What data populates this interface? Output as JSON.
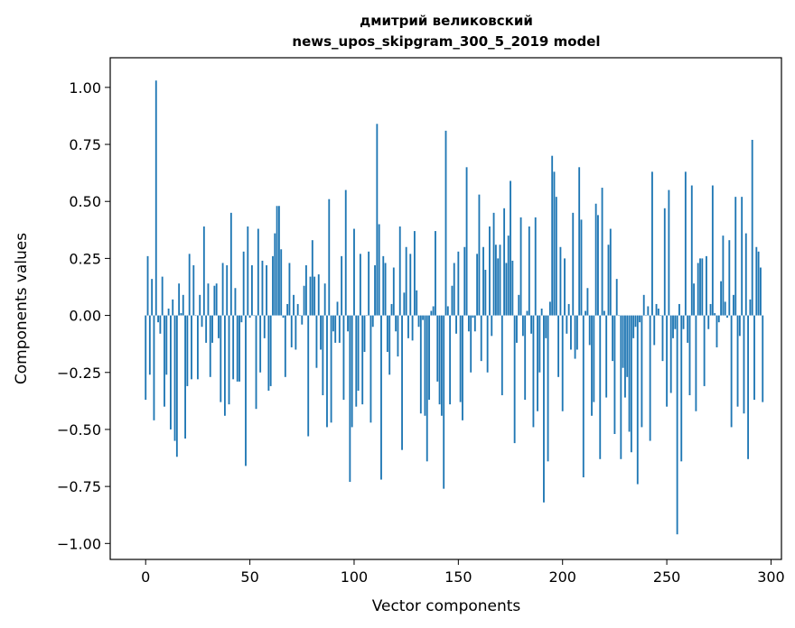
{
  "chart_data": {
    "type": "bar",
    "title": "дмитрий великовский",
    "subtitle": "news_upos_skipgram_300_5_2019 model",
    "xlabel": "Vector components",
    "ylabel": "Components values",
    "xlim": [
      -17,
      305
    ],
    "ylim": [
      -1.07,
      1.13
    ],
    "x_ticks": [
      0,
      50,
      100,
      150,
      200,
      250,
      300
    ],
    "y_ticks": [
      -1.0,
      -0.75,
      -0.5,
      -0.25,
      0.0,
      0.25,
      0.5,
      0.75,
      1.0
    ],
    "y_tick_labels": [
      "−1.00",
      "−0.75",
      "−0.50",
      "−0.25",
      "0.00",
      "0.25",
      "0.50",
      "0.75",
      "1.00"
    ],
    "grid": false,
    "bar_color": "#1f77b4",
    "series": [
      {
        "values": [
          -0.37,
          0.26,
          -0.26,
          0.16,
          -0.46,
          1.03,
          -0.03,
          -0.08,
          0.17,
          -0.4,
          -0.26,
          0.03,
          -0.5,
          0.07,
          -0.55,
          -0.62,
          0.14,
          0.01,
          0.09,
          -0.54,
          -0.31,
          0.27,
          -0.28,
          0.22,
          0.0,
          -0.28,
          0.09,
          -0.05,
          0.39,
          -0.12,
          0.14,
          -0.27,
          -0.12,
          0.13,
          0.14,
          -0.1,
          -0.38,
          0.23,
          -0.44,
          0.22,
          -0.39,
          0.45,
          -0.28,
          0.12,
          -0.29,
          -0.29,
          -0.03,
          0.28,
          -0.66,
          0.39,
          -0.01,
          0.22,
          0.0,
          -0.41,
          0.38,
          -0.25,
          0.24,
          -0.1,
          0.22,
          -0.33,
          -0.31,
          0.26,
          0.36,
          0.48,
          0.48,
          0.29,
          -0.01,
          -0.27,
          0.05,
          0.23,
          -0.14,
          0.09,
          -0.15,
          0.05,
          0.0,
          -0.04,
          0.13,
          0.22,
          -0.53,
          0.17,
          0.33,
          0.17,
          -0.23,
          0.18,
          -0.15,
          -0.35,
          0.14,
          -0.49,
          0.51,
          -0.47,
          -0.07,
          -0.12,
          0.06,
          -0.12,
          0.26,
          -0.37,
          0.55,
          -0.07,
          -0.73,
          -0.49,
          0.38,
          -0.4,
          -0.33,
          0.27,
          -0.39,
          -0.16,
          0.0,
          0.28,
          -0.47,
          -0.05,
          0.22,
          0.84,
          0.4,
          -0.72,
          0.26,
          0.23,
          -0.16,
          -0.26,
          0.05,
          0.21,
          -0.07,
          -0.18,
          0.39,
          -0.59,
          0.1,
          0.3,
          -0.1,
          0.27,
          -0.11,
          0.37,
          0.11,
          -0.05,
          -0.43,
          -0.02,
          -0.44,
          -0.64,
          -0.37,
          0.02,
          0.04,
          0.37,
          -0.29,
          -0.39,
          -0.44,
          -0.76,
          0.81,
          0.04,
          -0.39,
          0.13,
          0.23,
          -0.08,
          0.28,
          -0.38,
          -0.46,
          0.3,
          0.65,
          -0.07,
          -0.25,
          -0.01,
          -0.07,
          0.27,
          0.53,
          -0.2,
          0.3,
          0.2,
          -0.25,
          0.39,
          -0.09,
          0.45,
          0.31,
          0.25,
          0.31,
          -0.35,
          0.47,
          0.23,
          0.35,
          0.59,
          0.24,
          -0.56,
          -0.12,
          0.09,
          0.43,
          -0.09,
          -0.37,
          0.02,
          0.39,
          -0.08,
          -0.49,
          0.43,
          -0.42,
          -0.25,
          0.03,
          -0.82,
          -0.1,
          -0.64,
          0.06,
          0.7,
          0.63,
          0.52,
          -0.27,
          0.3,
          -0.42,
          0.25,
          -0.08,
          0.05,
          -0.15,
          0.45,
          -0.19,
          -0.15,
          0.65,
          0.42,
          -0.71,
          0.02,
          0.12,
          -0.13,
          -0.44,
          -0.38,
          0.49,
          0.44,
          -0.63,
          0.56,
          0.02,
          -0.36,
          0.31,
          0.38,
          -0.2,
          -0.52,
          0.16,
          0.0,
          -0.63,
          -0.23,
          -0.36,
          -0.27,
          -0.51,
          -0.6,
          -0.1,
          -0.05,
          -0.74,
          -0.03,
          -0.49,
          0.09,
          0.0,
          0.04,
          -0.55,
          0.63,
          -0.13,
          0.05,
          0.03,
          0.0,
          -0.2,
          0.47,
          -0.4,
          0.55,
          -0.34,
          -0.1,
          -0.06,
          -0.96,
          0.05,
          -0.64,
          -0.06,
          0.63,
          -0.12,
          -0.35,
          0.57,
          0.14,
          -0.42,
          0.23,
          0.25,
          0.25,
          -0.31,
          0.26,
          -0.06,
          0.05,
          0.57,
          0.01,
          -0.14,
          -0.03,
          0.15,
          0.35,
          0.06,
          -0.01,
          0.33,
          -0.49,
          0.09,
          0.52,
          -0.4,
          -0.09,
          0.52,
          -0.43,
          0.36,
          -0.63,
          0.07,
          0.77,
          -0.37,
          0.3,
          0.28,
          0.21,
          -0.38
        ]
      }
    ]
  }
}
